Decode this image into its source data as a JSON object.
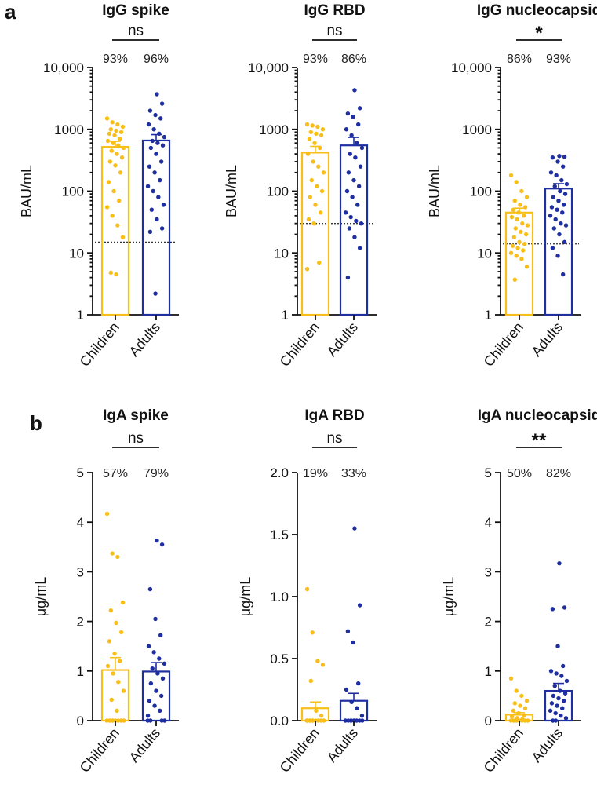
{
  "figure": {
    "panel_a_label": "a",
    "panel_b_label": "b"
  },
  "colors": {
    "children": "#F8BF1B",
    "adults": "#1F2FA0"
  },
  "chart_data": [
    {
      "type": "bar",
      "panel": "a",
      "title": "IgG spike",
      "ylabel": "BAU/mL",
      "scale": "log",
      "ylim": [
        1,
        10000
      ],
      "yticks": [
        1,
        10,
        100,
        1000,
        10000
      ],
      "yticklabels": [
        "1",
        "10",
        "100",
        "1000",
        "10,000"
      ],
      "categories": [
        "Children",
        "Adults"
      ],
      "means": [
        520,
        660
      ],
      "sem": [
        120,
        160
      ],
      "percent_labels": [
        "93%",
        "96%"
      ],
      "significance": "ns",
      "cutoff": 15,
      "points": [
        [
          1500,
          1300,
          1200,
          1100,
          1000,
          950,
          900,
          850,
          800,
          700,
          650,
          600,
          550,
          500,
          450,
          400,
          350,
          300,
          260,
          200,
          140,
          100,
          70,
          55,
          40,
          28,
          18,
          4.8,
          4.5
        ],
        [
          3700,
          2600,
          2000,
          1700,
          1500,
          1200,
          1000,
          850,
          750,
          650,
          600,
          550,
          500,
          400,
          300,
          250,
          200,
          150,
          120,
          100,
          80,
          60,
          50,
          35,
          25,
          22,
          2.2
        ]
      ]
    },
    {
      "type": "bar",
      "panel": "a",
      "title": "IgG RBD",
      "ylabel": "BAU/mL",
      "scale": "log",
      "ylim": [
        1,
        10000
      ],
      "yticks": [
        1,
        10,
        100,
        1000,
        10000
      ],
      "yticklabels": [
        "1",
        "10",
        "100",
        "1000",
        "10,000"
      ],
      "categories": [
        "Children",
        "Adults"
      ],
      "means": [
        420,
        550
      ],
      "sem": [
        110,
        190
      ],
      "percent_labels": [
        "93%",
        "86%"
      ],
      "significance": "ns",
      "cutoff": 30,
      "points": [
        [
          1200,
          1150,
          1100,
          1000,
          900,
          850,
          800,
          700,
          600,
          500,
          400,
          300,
          250,
          200,
          150,
          120,
          100,
          80,
          60,
          45,
          35,
          30,
          7,
          5.5
        ],
        [
          4300,
          2200,
          1800,
          1600,
          1200,
          1000,
          800,
          600,
          500,
          400,
          350,
          250,
          200,
          150,
          120,
          100,
          80,
          60,
          45,
          38,
          33,
          30,
          25,
          18,
          12,
          4
        ]
      ]
    },
    {
      "type": "bar",
      "panel": "a",
      "title": "IgG nucleocapsid",
      "ylabel": "BAU/mL",
      "scale": "log",
      "ylim": [
        1,
        10000
      ],
      "yticks": [
        1,
        10,
        100,
        1000,
        10000
      ],
      "yticklabels": [
        "1",
        "10",
        "100",
        "1000",
        "10,000"
      ],
      "categories": [
        "Children",
        "Adults"
      ],
      "means": [
        45,
        110
      ],
      "sem": [
        8,
        22
      ],
      "percent_labels": [
        "86%",
        "93%"
      ],
      "significance": "*",
      "cutoff": 14,
      "points": [
        [
          180,
          140,
          100,
          80,
          70,
          60,
          55,
          50,
          45,
          40,
          38,
          35,
          30,
          28,
          25,
          22,
          20,
          18,
          15,
          14,
          13,
          12,
          11,
          10,
          9,
          8,
          6,
          3.7
        ],
        [
          370,
          360,
          350,
          300,
          250,
          200,
          180,
          150,
          130,
          120,
          100,
          90,
          80,
          70,
          60,
          55,
          50,
          45,
          40,
          35,
          30,
          28,
          25,
          20,
          15,
          12,
          9,
          4.5
        ]
      ]
    },
    {
      "type": "bar",
      "panel": "b",
      "title": "IgA spike",
      "ylabel": "μg/mL",
      "scale": "linear",
      "ylim": [
        0,
        5
      ],
      "yticks": [
        0,
        1,
        2,
        3,
        4,
        5
      ],
      "yticklabels": [
        "0",
        "1",
        "2",
        "3",
        "4",
        "5"
      ],
      "categories": [
        "Children",
        "Adults"
      ],
      "means": [
        1.02,
        0.99
      ],
      "sem": [
        0.25,
        0.18
      ],
      "percent_labels": [
        "57%",
        "79%"
      ],
      "significance": "ns",
      "points": [
        [
          4.17,
          3.37,
          3.3,
          2.38,
          2.22,
          1.97,
          1.78,
          1.6,
          1.35,
          1.2,
          1.1,
          0.95,
          0.78,
          0.6,
          0.42,
          0.2,
          0,
          0,
          0,
          0,
          0,
          0,
          0,
          0
        ],
        [
          3.63,
          3.55,
          2.65,
          2.05,
          1.72,
          1.5,
          1.38,
          1.25,
          1.15,
          1.05,
          0.95,
          0.85,
          0.75,
          0.6,
          0.5,
          0.4,
          0.3,
          0.2,
          0.1,
          0,
          0,
          0,
          0
        ]
      ]
    },
    {
      "type": "bar",
      "panel": "b",
      "title": "IgA RBD",
      "ylabel": "μg/mL",
      "scale": "linear",
      "ylim": [
        0,
        2.0
      ],
      "yticks": [
        0,
        0.5,
        1.0,
        1.5,
        2.0
      ],
      "yticklabels": [
        "0.0",
        "0.5",
        "1.0",
        "1.5",
        "2.0"
      ],
      "categories": [
        "Children",
        "Adults"
      ],
      "means": [
        0.1,
        0.16
      ],
      "sem": [
        0.05,
        0.06
      ],
      "percent_labels": [
        "19%",
        "33%"
      ],
      "significance": "ns",
      "points": [
        [
          1.06,
          0.71,
          0.48,
          0.45,
          0.32,
          0.08,
          0.04,
          0,
          0,
          0,
          0,
          0,
          0,
          0,
          0,
          0,
          0
        ],
        [
          1.55,
          0.93,
          0.72,
          0.63,
          0.3,
          0.25,
          0.15,
          0.1,
          0.04,
          0,
          0,
          0,
          0,
          0,
          0,
          0,
          0
        ]
      ]
    },
    {
      "type": "bar",
      "panel": "b",
      "title": "IgA nucleocapsid",
      "ylabel": "μg/mL",
      "scale": "linear",
      "ylim": [
        0,
        5
      ],
      "yticks": [
        0,
        1,
        2,
        3,
        4,
        5
      ],
      "yticklabels": [
        "0",
        "1",
        "2",
        "3",
        "4",
        "5"
      ],
      "categories": [
        "Children",
        "Adults"
      ],
      "means": [
        0.12,
        0.6
      ],
      "sem": [
        0.04,
        0.15
      ],
      "percent_labels": [
        "50%",
        "82%"
      ],
      "significance": "**",
      "points": [
        [
          0.85,
          0.6,
          0.5,
          0.4,
          0.35,
          0.3,
          0.25,
          0.2,
          0.15,
          0.1,
          0.08,
          0.05,
          0.03,
          0,
          0,
          0,
          0,
          0,
          0,
          0
        ],
        [
          3.17,
          2.28,
          2.25,
          1.5,
          1.1,
          1.0,
          0.95,
          0.9,
          0.8,
          0.7,
          0.6,
          0.55,
          0.5,
          0.45,
          0.4,
          0.35,
          0.3,
          0.25,
          0.2,
          0.15,
          0.1,
          0.05,
          0,
          0
        ]
      ]
    }
  ]
}
